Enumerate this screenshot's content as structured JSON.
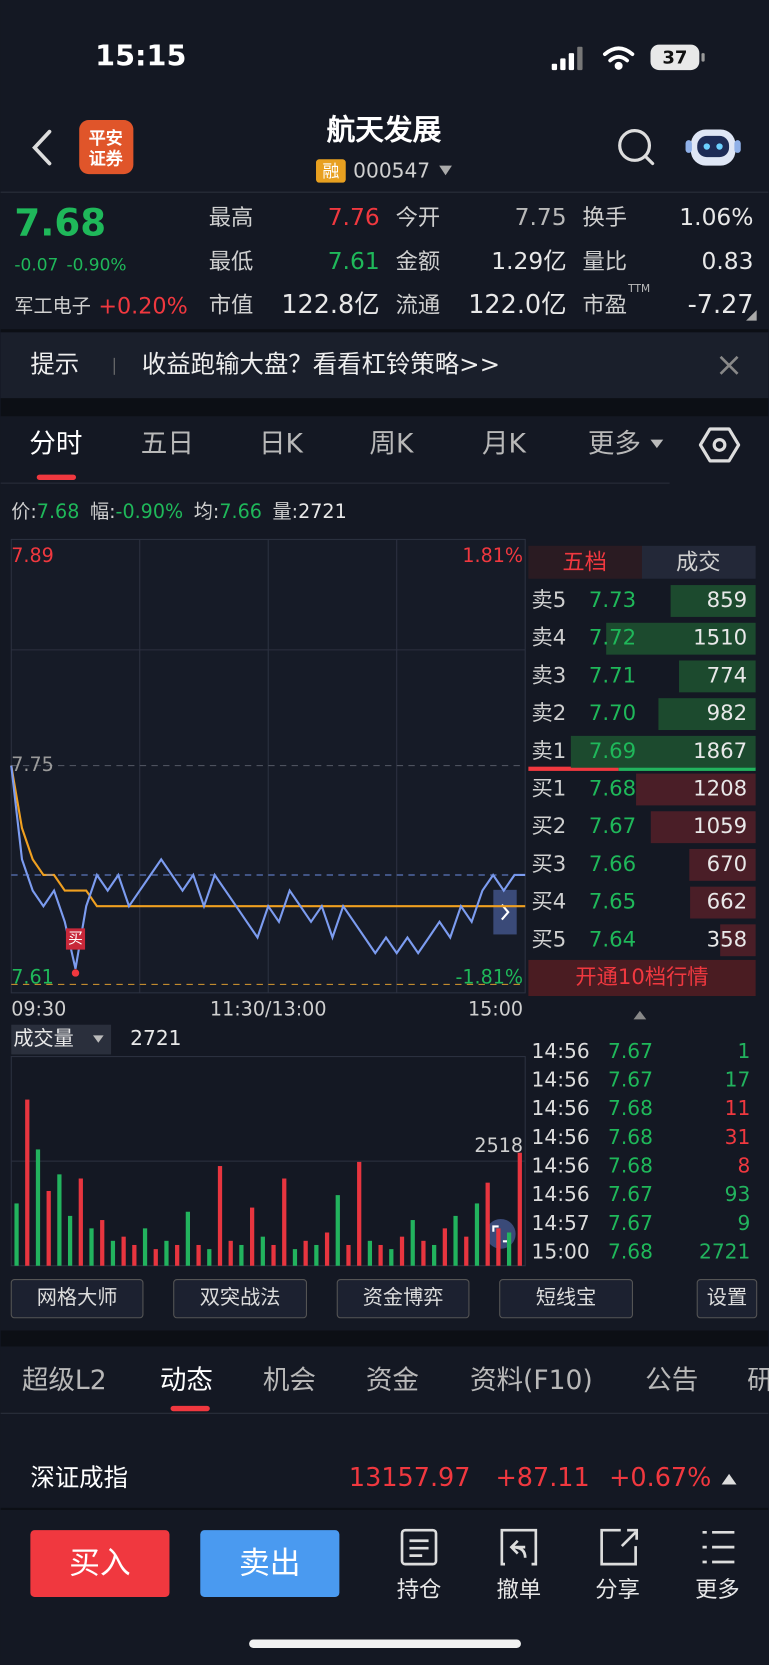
{
  "status": {
    "time": "15:15",
    "battery": "37"
  },
  "header": {
    "logo": [
      "平安",
      "证券"
    ],
    "name": "航天发展",
    "tag": "融",
    "code": "000547"
  },
  "quote": {
    "price": "7.68",
    "change": "-0.07",
    "pct": "-0.90%",
    "sector": "军工电子",
    "sector_pct": "+0.20%",
    "ttm": "TTM",
    "stats": [
      {
        "label": "最高",
        "value": "7.76",
        "color": "#f0383f"
      },
      {
        "label": "今开",
        "value": "7.75",
        "color": "#b8b8b8"
      },
      {
        "label": "换手",
        "value": "1.06%",
        "color": "#e8e8e8"
      },
      {
        "label": "最低",
        "value": "7.61",
        "color": "#1fb85a"
      },
      {
        "label": "金额",
        "value": "1.29亿",
        "color": "#e8e8e8"
      },
      {
        "label": "量比",
        "value": "0.83",
        "color": "#e8e8e8"
      },
      {
        "label": "市值",
        "value": "122.8亿",
        "color": "#e8e8e8"
      },
      {
        "label": "流通",
        "value": "122.0亿",
        "color": "#e8e8e8"
      },
      {
        "label": "市盈",
        "value": "-7.27",
        "color": "#e8e8e8"
      }
    ]
  },
  "notice": {
    "label": "提示",
    "text": "收益跑输大盘？看看杠铃策略>>"
  },
  "tabs": [
    "分时",
    "五日",
    "日K",
    "周K",
    "月K",
    "更多"
  ],
  "info": [
    {
      "label": "价:",
      "value": "7.68",
      "color": "#1fb85a"
    },
    {
      "label": "幅:",
      "value": "-0.90%",
      "color": "#1fb85a"
    },
    {
      "label": "均:",
      "value": "7.66",
      "color": "#1fb85a"
    },
    {
      "label": "量:",
      "value": "2721",
      "color": "#e8e8e8"
    }
  ],
  "chart": {
    "ylim": [
      7.61,
      7.89
    ],
    "yticks": [
      7.89,
      7.75,
      7.61
    ],
    "ytick_colors": [
      "#f0383f",
      "#9a9a9a",
      "#1fb85a"
    ],
    "y2lim": [
      -1.81,
      1.81
    ],
    "y2ticks": [
      {
        "value": 1.81,
        "label": "1.81%"
      },
      {
        "value": -1.81,
        "label": "-1.81%"
      }
    ],
    "x_labels": [
      "09:30",
      "11:30/13:00",
      "15:00"
    ],
    "marker": "买",
    "price": {
      "color": "#7c9cf0",
      "values": [
        7.75,
        7.69,
        7.67,
        7.66,
        7.67,
        7.65,
        7.62,
        7.66,
        7.68,
        7.67,
        7.68,
        7.66,
        7.67,
        7.68,
        7.69,
        7.68,
        7.67,
        7.68,
        7.66,
        7.68,
        7.67,
        7.66,
        7.65,
        7.64,
        7.66,
        7.65,
        7.67,
        7.66,
        7.65,
        7.66,
        7.64,
        7.66,
        7.65,
        7.64,
        7.63,
        7.64,
        7.63,
        7.64,
        7.63,
        7.64,
        7.65,
        7.64,
        7.66,
        7.65,
        7.67,
        7.68,
        7.67,
        7.68,
        7.68
      ]
    },
    "avg": {
      "color": "#f0a020",
      "values": [
        7.75,
        7.71,
        7.69,
        7.68,
        7.68,
        7.67,
        7.67,
        7.67,
        7.66,
        7.66,
        7.66,
        7.66,
        7.66,
        7.66,
        7.66,
        7.66,
        7.66,
        7.66,
        7.66,
        7.66,
        7.66,
        7.66,
        7.66,
        7.66,
        7.66,
        7.66,
        7.66,
        7.66,
        7.66,
        7.66,
        7.66,
        7.66,
        7.66,
        7.66,
        7.66,
        7.66,
        7.66,
        7.66,
        7.66,
        7.66,
        7.66,
        7.66,
        7.66,
        7.66,
        7.66,
        7.66,
        7.66,
        7.66,
        7.66
      ]
    }
  },
  "volume": {
    "label": "成交量",
    "last": "2721",
    "ylim": [
      0,
      5036
    ],
    "yticks": [
      2518
    ],
    "values": [
      1500,
      4000,
      2800,
      1800,
      2200,
      1200,
      2100,
      900,
      1100,
      600,
      700,
      500,
      900,
      400,
      600,
      500,
      1300,
      500,
      400,
      2400,
      600,
      500,
      1400,
      700,
      500,
      2100,
      400,
      600,
      500,
      800,
      1700,
      500,
      2500,
      600,
      500,
      400,
      700,
      1100,
      600,
      500,
      900,
      1200,
      700,
      1500,
      2000,
      900,
      800,
      2721
    ],
    "colors": [
      "#22b35e",
      "#e8353f",
      "#22b35e",
      "#e8353f",
      "#22b35e",
      "#22b35e",
      "#e8353f",
      "#22b35e",
      "#e8353f",
      "#22b35e",
      "#e8353f",
      "#e8353f",
      "#22b35e",
      "#e8353f",
      "#22b35e",
      "#e8353f",
      "#22b35e",
      "#e8353f",
      "#22b35e",
      "#e8353f",
      "#e8353f",
      "#22b35e",
      "#e8353f",
      "#22b35e",
      "#e8353f",
      "#e8353f",
      "#22b35e",
      "#e8353f",
      "#22b35e",
      "#e8353f",
      "#22b35e",
      "#e8353f",
      "#e8353f",
      "#22b35e",
      "#e8353f",
      "#22b35e",
      "#e8353f",
      "#22b35e",
      "#e8353f",
      "#22b35e",
      "#e8353f",
      "#22b35e",
      "#e8353f",
      "#22b35e",
      "#e8353f",
      "#e8353f",
      "#22b35e",
      "#e8353f"
    ]
  },
  "orderbook": {
    "tabs": [
      "五档",
      "成交"
    ],
    "asks": [
      {
        "label": "卖5",
        "price": "7.73",
        "volume": 859
      },
      {
        "label": "卖4",
        "price": "7.72",
        "volume": 1510
      },
      {
        "label": "卖3",
        "price": "7.71",
        "volume": 774
      },
      {
        "label": "卖2",
        "price": "7.70",
        "volume": 982
      },
      {
        "label": "卖1",
        "price": "7.69",
        "volume": 1867
      }
    ],
    "bids": [
      {
        "label": "买1",
        "price": "7.68",
        "volume": 1208
      },
      {
        "label": "买2",
        "price": "7.67",
        "volume": 1059
      },
      {
        "label": "买3",
        "price": "7.66",
        "volume": 670
      },
      {
        "label": "买4",
        "price": "7.65",
        "volume": 662
      },
      {
        "label": "买5",
        "price": "7.64",
        "volume": 358
      }
    ],
    "button": "开通10档行情",
    "trades": [
      {
        "time": "14:56",
        "price": "7.67",
        "volume": "1",
        "color": "#22b35e"
      },
      {
        "time": "14:56",
        "price": "7.67",
        "volume": "17",
        "color": "#22b35e"
      },
      {
        "time": "14:56",
        "price": "7.68",
        "volume": "11",
        "color": "#f0383f"
      },
      {
        "time": "14:56",
        "price": "7.68",
        "volume": "31",
        "color": "#f0383f"
      },
      {
        "time": "14:56",
        "price": "7.68",
        "volume": "8",
        "color": "#f0383f"
      },
      {
        "time": "14:56",
        "price": "7.67",
        "volume": "93",
        "color": "#22b35e"
      },
      {
        "time": "14:57",
        "price": "7.67",
        "volume": "9",
        "color": "#22b35e"
      },
      {
        "time": "15:00",
        "price": "7.68",
        "volume": "2721",
        "color": "#22b35e"
      }
    ]
  },
  "tools": [
    "网格大师",
    "双突战法",
    "资金博弈",
    "短线宝",
    "设置"
  ],
  "bottom_tabs": [
    "超级L2",
    "动态",
    "机会",
    "资金",
    "资料(F10)",
    "公告",
    "研"
  ],
  "index": {
    "name": "深证成指",
    "value": "13157.97",
    "change": "+87.11",
    "pct": "+0.67%"
  },
  "actions": {
    "buy": "买入",
    "sell": "卖出",
    "icons": [
      "持仓",
      "撤单",
      "分享",
      "更多"
    ]
  }
}
